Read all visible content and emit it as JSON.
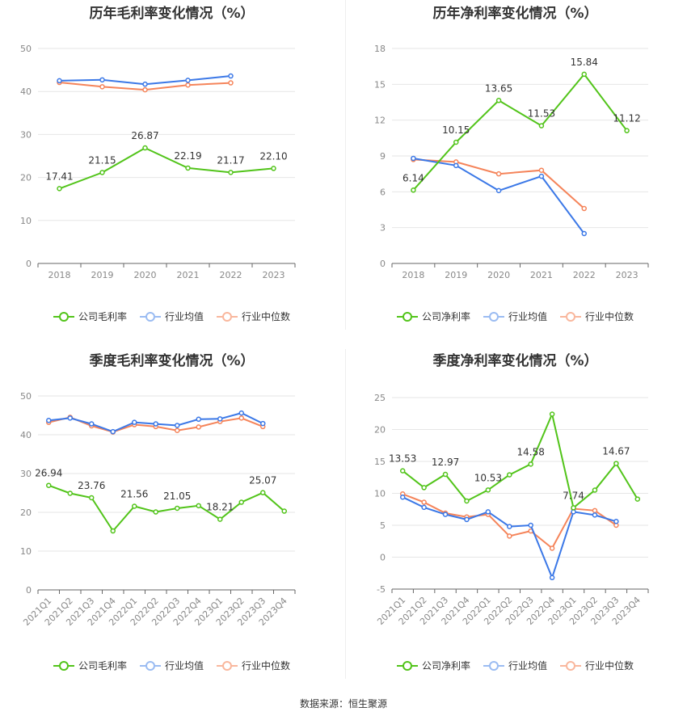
{
  "colors": {
    "company": "#52c41a",
    "industry_avg": "#3b78e7",
    "industry_median": "#f5845a"
  },
  "source": "数据来源：恒生聚源",
  "chart_data": [
    {
      "type": "line",
      "title": "历年毛利率变化情况（%）",
      "categories": [
        "2018",
        "2019",
        "2020",
        "2021",
        "2022",
        "2023"
      ],
      "ylim": [
        0,
        50
      ],
      "yticks": [
        0,
        10,
        20,
        30,
        40,
        50
      ],
      "series": [
        {
          "name": "公司毛利率",
          "role": "company",
          "values": [
            17.41,
            21.15,
            26.87,
            22.19,
            21.17,
            22.1
          ],
          "labels": [
            "17.41",
            "21.15",
            "26.87",
            "22.19",
            "21.17",
            "22.10"
          ]
        },
        {
          "name": "行业均值",
          "role": "industry_avg",
          "values": [
            42.5,
            42.7,
            41.7,
            42.6,
            43.6,
            null
          ]
        },
        {
          "name": "行业中位数",
          "role": "industry_median",
          "values": [
            42.1,
            41.1,
            40.4,
            41.5,
            42.0,
            null
          ]
        }
      ]
    },
    {
      "type": "line",
      "title": "历年净利率变化情况（%）",
      "categories": [
        "2018",
        "2019",
        "2020",
        "2021",
        "2022",
        "2023"
      ],
      "ylim": [
        0,
        18
      ],
      "yticks": [
        0,
        3,
        6,
        9,
        12,
        15,
        18
      ],
      "series": [
        {
          "name": "公司净利率",
          "role": "company",
          "values": [
            6.14,
            10.15,
            13.65,
            11.53,
            15.84,
            11.12
          ],
          "labels": [
            "6.14",
            "10.15",
            "13.65",
            "11.53",
            "15.84",
            "11.12"
          ]
        },
        {
          "name": "行业均值",
          "role": "industry_avg",
          "values": [
            8.8,
            8.2,
            6.1,
            7.3,
            2.5,
            null
          ]
        },
        {
          "name": "行业中位数",
          "role": "industry_median",
          "values": [
            8.7,
            8.5,
            7.5,
            7.8,
            4.6,
            null
          ]
        }
      ]
    },
    {
      "type": "line",
      "title": "季度毛利率变化情况（%）",
      "categories": [
        "2021Q1",
        "2021Q2",
        "2021Q3",
        "2021Q4",
        "2022Q1",
        "2022Q2",
        "2022Q3",
        "2022Q4",
        "2023Q1",
        "2023Q2",
        "2023Q3",
        "2023Q4"
      ],
      "ylim": [
        0,
        50
      ],
      "yticks": [
        0,
        10,
        20,
        30,
        40,
        50
      ],
      "rotate_labels": true,
      "series": [
        {
          "name": "公司毛利率",
          "role": "company",
          "values": [
            26.94,
            24.9,
            23.76,
            15.2,
            21.56,
            20.1,
            21.05,
            21.7,
            18.21,
            22.6,
            25.07,
            20.3
          ],
          "labels": [
            "26.94",
            "",
            "23.76",
            "",
            "21.56",
            "",
            "21.05",
            "",
            "18.21",
            "",
            "25.07",
            ""
          ]
        },
        {
          "name": "行业均值",
          "role": "industry_avg",
          "values": [
            43.7,
            44.3,
            42.8,
            40.8,
            43.2,
            42.8,
            42.4,
            44.0,
            44.1,
            45.6,
            42.9,
            null
          ]
        },
        {
          "name": "行业中位数",
          "role": "industry_median",
          "values": [
            43.2,
            44.5,
            42.3,
            40.7,
            42.6,
            42.1,
            41.1,
            42.0,
            43.4,
            44.3,
            42.1,
            null
          ]
        }
      ]
    },
    {
      "type": "line",
      "title": "季度净利率变化情况（%）",
      "categories": [
        "2021Q1",
        "2021Q2",
        "2021Q3",
        "2021Q4",
        "2022Q1",
        "2022Q2",
        "2022Q3",
        "2022Q4",
        "2023Q1",
        "2023Q2",
        "2023Q3",
        "2023Q4"
      ],
      "ylim": [
        -5,
        25
      ],
      "yticks": [
        -5,
        0,
        5,
        10,
        15,
        20,
        25
      ],
      "rotate_labels": true,
      "series": [
        {
          "name": "公司净利率",
          "role": "company",
          "values": [
            13.53,
            10.9,
            12.97,
            8.8,
            10.53,
            12.9,
            14.58,
            22.4,
            7.74,
            10.5,
            14.67,
            9.1
          ],
          "labels": [
            "13.53",
            "",
            "12.97",
            "",
            "10.53",
            "",
            "14.58",
            "",
            "7.74",
            "",
            "14.67",
            ""
          ]
        },
        {
          "name": "行业均值",
          "role": "industry_avg",
          "values": [
            9.4,
            7.8,
            6.7,
            5.9,
            7.1,
            4.8,
            5.0,
            -3.2,
            7.1,
            6.6,
            5.6,
            null
          ]
        },
        {
          "name": "行业中位数",
          "role": "industry_median",
          "values": [
            9.9,
            8.6,
            6.9,
            6.3,
            6.7,
            3.3,
            4.1,
            1.4,
            7.6,
            7.3,
            5.0,
            null
          ]
        }
      ]
    }
  ]
}
